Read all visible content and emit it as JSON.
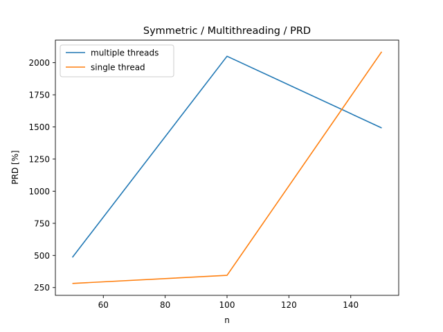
{
  "chart_data": {
    "type": "line",
    "title": "Symmetric / Multithreading / PRD",
    "xlabel": "n",
    "ylabel": "PRD [%]",
    "xlim": [
      44.5,
      155.5
    ],
    "ylim": [
      189.4,
      2175.5
    ],
    "xticks": [
      60,
      80,
      100,
      120,
      140
    ],
    "yticks": [
      250,
      500,
      750,
      1000,
      1250,
      1500,
      1750,
      2000
    ],
    "grid": false,
    "legend_position": "upper left",
    "series": [
      {
        "name": "multiple threads",
        "color": "#1f77b4",
        "x": [
          50,
          100,
          150
        ],
        "y": [
          485,
          2050,
          1492
        ]
      },
      {
        "name": "single thread",
        "color": "#ff7f0e",
        "x": [
          50,
          100,
          150
        ],
        "y": [
          282,
          345,
          2085
        ]
      }
    ]
  }
}
